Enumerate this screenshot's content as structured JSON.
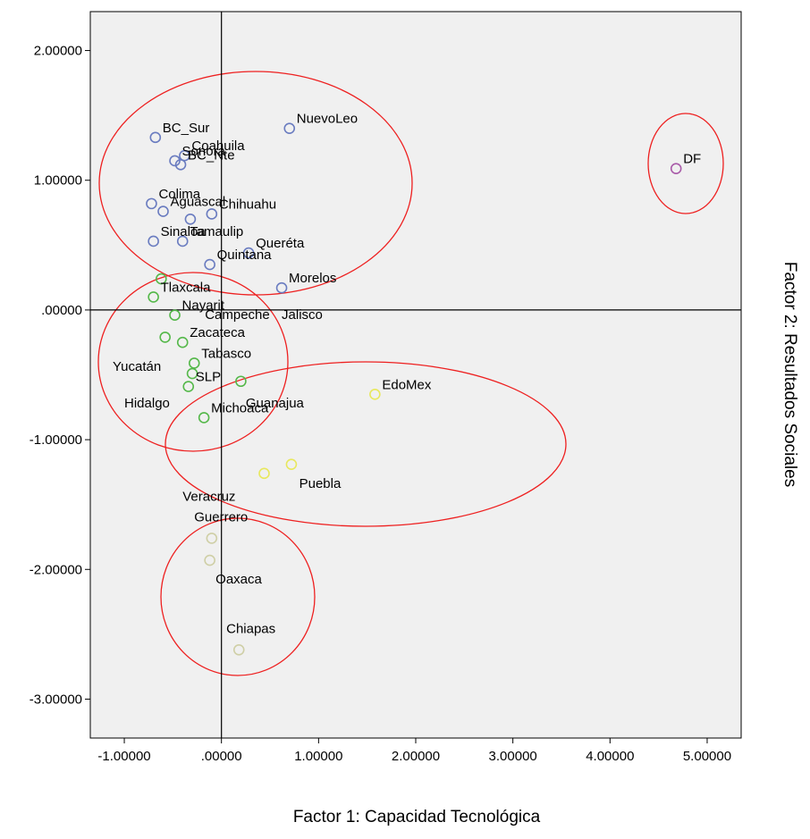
{
  "chart_data": {
    "type": "scatter",
    "xlabel": "Factor 1: Capacidad Tecnológica",
    "ylabel": "Factor 2: Resultados Sociales",
    "xlim": [
      -1.35,
      5.35
    ],
    "ylim": [
      -3.3,
      2.3
    ],
    "x_ticks": [
      -1,
      0,
      1,
      2,
      3,
      4,
      5
    ],
    "x_tick_labels": [
      "-1.00000",
      ".00000",
      "1.00000",
      "2.00000",
      "3.00000",
      "4.00000",
      "5.00000"
    ],
    "y_ticks": [
      2,
      1,
      0,
      -1,
      -2,
      -3
    ],
    "y_tick_labels": [
      "2.00000",
      "1.00000",
      ".00000",
      "-1.00000",
      "-2.00000",
      "-3.00000"
    ],
    "grid": false,
    "reference_lines": {
      "x": 0,
      "y": 0
    },
    "colors": {
      "background": "#f0f0f0",
      "cluster1": "#6a7cc0",
      "cluster2": "#55b84a",
      "cluster3": "#e8e85e",
      "cluster4": "#cfcfa6",
      "cluster5": "#a85aa8",
      "ellipse": "#ee2020"
    },
    "points": [
      {
        "label": "BC_Sur",
        "x": -0.68,
        "y": 1.33,
        "cluster": 1
      },
      {
        "label": "NuevoLeo",
        "x": 0.7,
        "y": 1.4,
        "cluster": 1
      },
      {
        "label": "Coahuila",
        "x": -0.38,
        "y": 1.19,
        "cluster": 1
      },
      {
        "label": "Sonora",
        "x": -0.48,
        "y": 1.15,
        "cluster": 1
      },
      {
        "label": "BC_Nte",
        "x": -0.42,
        "y": 1.12,
        "cluster": 1
      },
      {
        "label": "Colima",
        "x": -0.72,
        "y": 0.82,
        "cluster": 1
      },
      {
        "label": "Aguascal",
        "x": -0.6,
        "y": 0.76,
        "cluster": 1
      },
      {
        "label": "Chihuahu",
        "x": -0.1,
        "y": 0.74,
        "cluster": 1
      },
      {
        "label": "",
        "x": -0.32,
        "y": 0.7,
        "cluster": 1
      },
      {
        "label": "Sinaloa",
        "x": -0.7,
        "y": 0.53,
        "cluster": 1
      },
      {
        "label": "Tamaulip",
        "x": -0.4,
        "y": 0.53,
        "cluster": 1
      },
      {
        "label": "Queréta",
        "x": 0.28,
        "y": 0.44,
        "cluster": 1
      },
      {
        "label": "Quintana",
        "x": -0.12,
        "y": 0.35,
        "cluster": 1
      },
      {
        "label": "Morelos",
        "x": 0.62,
        "y": 0.17,
        "cluster": 1
      },
      {
        "label": "DF",
        "x": 4.68,
        "y": 1.09,
        "cluster": 5
      },
      {
        "label": "",
        "x": -0.62,
        "y": 0.24,
        "cluster": 2
      },
      {
        "label": "Tlaxcala",
        "x": -0.7,
        "y": 0.1,
        "cluster": 2
      },
      {
        "label": "Nayarit",
        "x": -0.48,
        "y": -0.04,
        "cluster": 2
      },
      {
        "label": "",
        "x": -0.58,
        "y": -0.21,
        "cluster": 2
      },
      {
        "label": "Zacateca",
        "x": -0.4,
        "y": -0.25,
        "cluster": 2
      },
      {
        "label": "Tabasco",
        "x": -0.28,
        "y": -0.41,
        "cluster": 2
      },
      {
        "label": "",
        "x": -0.3,
        "y": -0.49,
        "cluster": 2
      },
      {
        "label": "SLP",
        "x": -0.34,
        "y": -0.59,
        "cluster": 2
      },
      {
        "label": "",
        "x": 0.2,
        "y": -0.55,
        "cluster": 2
      },
      {
        "label": "Michoaca",
        "x": -0.18,
        "y": -0.83,
        "cluster": 2
      },
      {
        "label": "EdoMex",
        "x": 1.58,
        "y": -0.65,
        "cluster": 3
      },
      {
        "label": "",
        "x": 0.72,
        "y": -1.19,
        "cluster": 3
      },
      {
        "label": "",
        "x": 0.44,
        "y": -1.26,
        "cluster": 3
      },
      {
        "label": "",
        "x": -0.1,
        "y": -1.76,
        "cluster": 4
      },
      {
        "label": "",
        "x": -0.12,
        "y": -1.93,
        "cluster": 4
      },
      {
        "label": "",
        "x": 0.18,
        "y": -2.62,
        "cluster": 4
      }
    ],
    "text_annotations": [
      {
        "text": "Campeche",
        "x": -0.17,
        "y": -0.07
      },
      {
        "text": "Jalisco",
        "x": 0.62,
        "y": -0.07
      },
      {
        "text": "Yucatán",
        "x": -1.12,
        "y": -0.47
      },
      {
        "text": "Hidalgo",
        "x": -1.0,
        "y": -0.75
      },
      {
        "text": "Guanajua",
        "x": 0.25,
        "y": -0.75
      },
      {
        "text": "Puebla",
        "x": 0.8,
        "y": -1.37
      },
      {
        "text": "Veracruz",
        "x": -0.4,
        "y": -1.47
      },
      {
        "text": "Guerrero",
        "x": -0.28,
        "y": -1.63
      },
      {
        "text": "Oaxaca",
        "x": -0.06,
        "y": -2.11
      },
      {
        "text": "Chiapas",
        "x": 0.05,
        "y": -2.49
      }
    ]
  }
}
